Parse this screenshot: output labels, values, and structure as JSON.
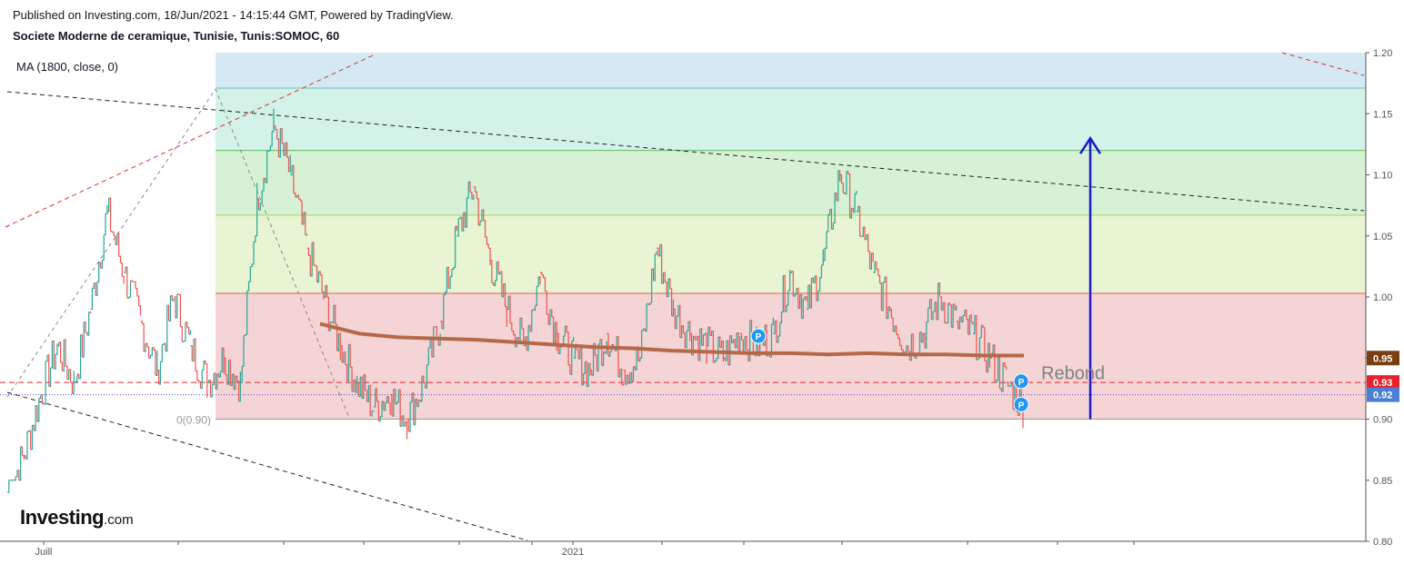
{
  "header": {
    "published": "Published on Investing.com, 18/Jun/2021 - 14:15:44 GMT, Powered by TradingView.",
    "symbol": "Societe Moderne de ceramique, Tunisie, Tunis:SOMOC, 60"
  },
  "indicator": {
    "label": "MA (1800, close, 0)"
  },
  "logo": {
    "brand": "Investing",
    "suffix": ".com"
  },
  "colors": {
    "up_candle": "#26a69a",
    "down_candle": "#ef5350",
    "moving_average": "#b5694a",
    "annotation_arrow": "#1a1acd",
    "last_price_badge": "#e8202a",
    "ma_badge": "#7a3e12",
    "bid_badge": "#4a7fd4"
  },
  "chart_data": {
    "type": "line",
    "title": "Societe Moderne de ceramique, Tunisie, Tunis:SOMOC, 60",
    "y_axis": {
      "ticks": [
        "1.20",
        "1.15",
        "1.10",
        "1.05",
        "1.00",
        "0.95",
        "0.90",
        "0.85",
        "0.80"
      ],
      "range": [
        0.8,
        1.2
      ]
    },
    "x_axis": {
      "labels": [
        "Juill",
        "2021"
      ]
    },
    "series": [
      {
        "name": "MA (1800, close, 0)",
        "x_index": [
          0,
          10,
          20,
          30,
          40,
          50,
          60,
          70,
          80,
          90,
          100,
          110,
          120,
          130,
          140,
          150,
          160,
          170,
          180
        ],
        "values": [
          0.978,
          0.97,
          0.967,
          0.966,
          0.965,
          0.963,
          0.961,
          0.959,
          0.958,
          0.956,
          0.955,
          0.954,
          0.954,
          0.953,
          0.954,
          0.953,
          0.953,
          0.952,
          0.952
        ]
      }
    ],
    "price_path": [
      0.84,
      0.87,
      0.92,
      0.96,
      0.93,
      0.99,
      1.07,
      1.02,
      0.98,
      0.94,
      1.0,
      0.96,
      0.93,
      0.95,
      0.93,
      1.08,
      1.14,
      1.1,
      1.04,
      1.0,
      0.96,
      0.93,
      0.91,
      0.92,
      0.9,
      0.93,
      0.98,
      1.05,
      1.09,
      1.03,
      0.99,
      0.96,
      1.02,
      0.97,
      0.95,
      0.94,
      0.97,
      0.94,
      0.95,
      1.04,
      0.99,
      0.97,
      0.96,
      0.95,
      0.97,
      0.96,
      0.97,
      1.02,
      0.99,
      1.03,
      1.1,
      1.07,
      1.02,
      0.99,
      0.96,
      0.97,
      1.0,
      0.98,
      0.97,
      0.95,
      0.93,
      0.91
    ],
    "fibonacci_levels": [
      {
        "price": 1.171,
        "color": "#67c2c2"
      },
      {
        "price": 1.12,
        "color": "#5cc05c"
      },
      {
        "price": 1.067,
        "color": "#a2d560"
      },
      {
        "price": 1.003,
        "color": "#e06060"
      },
      {
        "price": 0.9,
        "color": "#999999",
        "label": "0(0.90)"
      }
    ],
    "horizontal_lines": [
      {
        "price": 0.93,
        "style": "dashed",
        "color": "#e8202a"
      },
      {
        "price": 0.92,
        "style": "dotted",
        "color": "#4a4ae0"
      }
    ],
    "price_badges": [
      {
        "value": "0.95",
        "color": "#7a3e12"
      },
      {
        "value": "0.93",
        "color": "#e8202a"
      },
      {
        "value": "0.92",
        "color": "#4a7fd4"
      }
    ],
    "annotations": [
      {
        "type": "text",
        "text": "Rebond",
        "price": 0.938
      },
      {
        "type": "arrow",
        "from_price": 0.9,
        "to_price": 1.13
      },
      {
        "type": "marker",
        "text": "P",
        "price": 0.968
      },
      {
        "type": "marker",
        "text": "P",
        "price": 0.931
      },
      {
        "type": "marker",
        "text": "P",
        "price": 0.912
      }
    ],
    "grid": false
  }
}
